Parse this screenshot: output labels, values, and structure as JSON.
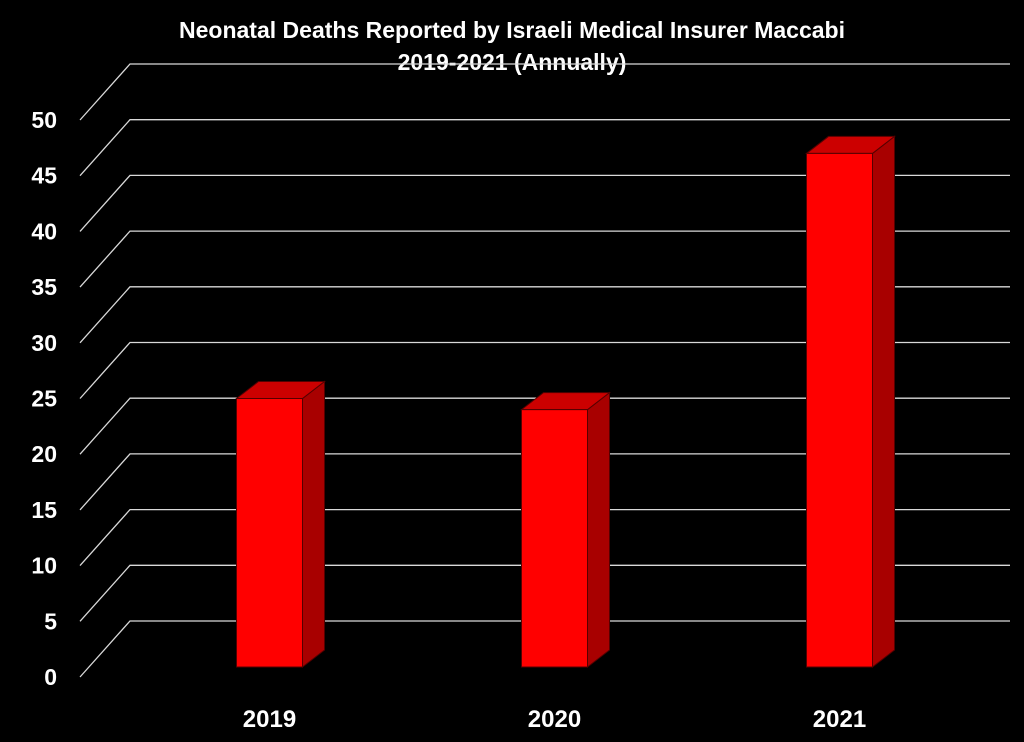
{
  "chart_data": {
    "type": "bar",
    "title": "Neonatal Deaths Reported by Israeli Medical Insurer Maccabi",
    "subtitle": "2019-2021 (Annually)",
    "categories": [
      "2019",
      "2020",
      "2021"
    ],
    "values": [
      25,
      24,
      47
    ],
    "ylim": [
      0,
      50
    ],
    "yticks": [
      "0",
      "5",
      "10",
      "15",
      "20",
      "25",
      "30",
      "35",
      "40",
      "45",
      "50"
    ],
    "grid": true,
    "legend": "none",
    "style": "3d-column"
  },
  "colors": {
    "background": "#000000",
    "bar_front": "#ff0000",
    "bar_top": "#cc0000",
    "bar_side": "#a80000",
    "gridline": "#d9d9d9",
    "text": "#ffffff"
  }
}
